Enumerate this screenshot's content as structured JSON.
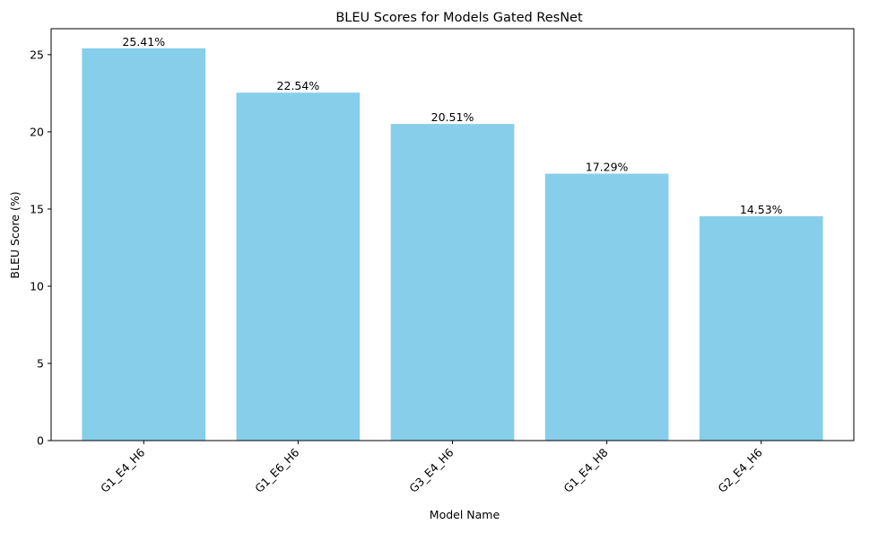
{
  "chart_data": {
    "type": "bar",
    "title": "BLEU Scores for Models Gated ResNet",
    "xlabel": "Model Name",
    "ylabel": "BLEU Score (%)",
    "categories": [
      "G1_E4_H6",
      "G1_E6_H6",
      "G3_E4_H6",
      "G1_E4_H8",
      "G2_E4_H6"
    ],
    "values": [
      25.41,
      22.54,
      20.51,
      17.29,
      14.53
    ],
    "data_labels": [
      "25.41%",
      "22.54%",
      "20.51%",
      "17.29%",
      "14.53%"
    ],
    "ylim": [
      0,
      26.68
    ],
    "yticks": [
      0,
      5,
      10,
      15,
      20,
      25
    ],
    "grid": false,
    "bar_color": "#87ceeb"
  }
}
